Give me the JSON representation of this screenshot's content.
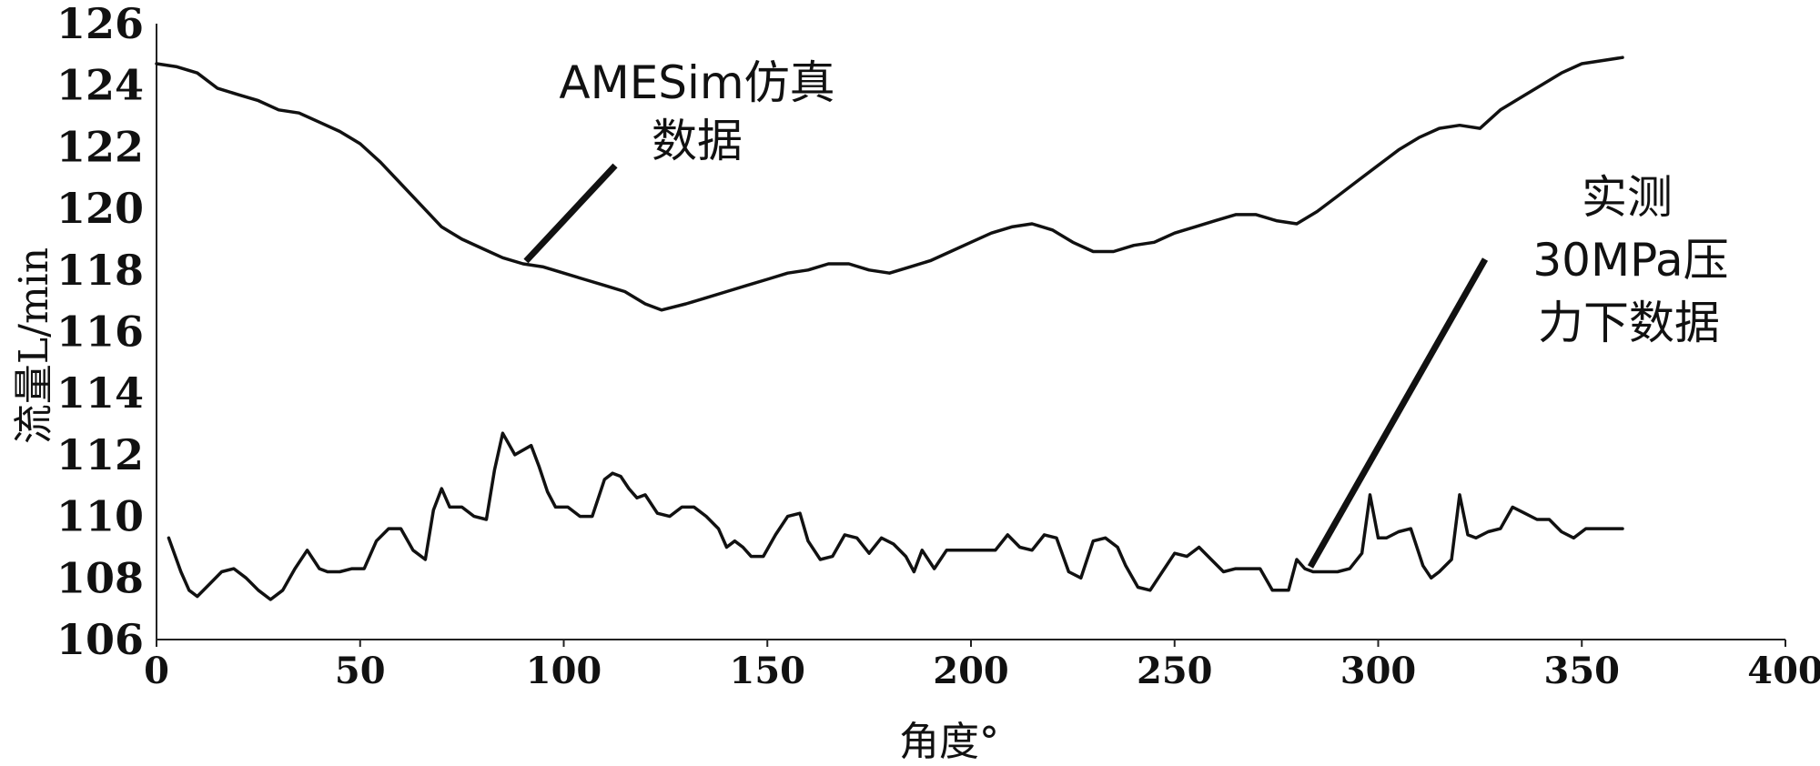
{
  "chart_data": {
    "type": "line",
    "xlabel": "角度°",
    "ylabel": "流量L/min",
    "xlim": [
      0,
      400
    ],
    "ylim": [
      106,
      126
    ],
    "x_ticks": [
      "0",
      "50",
      "100",
      "150",
      "200",
      "250",
      "300",
      "350",
      "400"
    ],
    "y_ticks": [
      "106",
      "108",
      "110",
      "112",
      "114",
      "116",
      "118",
      "120",
      "122",
      "124",
      "126"
    ],
    "grid": false,
    "legend": "none",
    "annotations": [
      {
        "lines": [
          "AMESim仿真",
          "数据"
        ],
        "target_series": 0
      },
      {
        "lines": [
          "实测",
          "30MPa压",
          "力下数据"
        ],
        "target_series": 1
      }
    ],
    "series": [
      {
        "x": [
          0,
          5,
          10,
          15,
          20,
          25,
          30,
          35,
          40,
          45,
          50,
          55,
          60,
          65,
          70,
          75,
          80,
          85,
          90,
          95,
          100,
          105,
          110,
          115,
          120,
          124,
          130,
          135,
          140,
          145,
          150,
          155,
          160,
          165,
          170,
          175,
          180,
          185,
          190,
          195,
          200,
          205,
          210,
          215,
          220,
          225,
          230,
          235,
          240,
          245,
          250,
          255,
          260,
          265,
          270,
          275,
          280,
          285,
          290,
          295,
          300,
          305,
          310,
          315,
          320,
          325,
          330,
          335,
          340,
          345,
          350,
          355,
          360
        ],
        "y": [
          124.7,
          124.6,
          124.4,
          123.9,
          123.7,
          123.5,
          123.2,
          123.1,
          122.8,
          122.5,
          122.1,
          121.5,
          120.8,
          120.1,
          119.4,
          119.0,
          118.7,
          118.4,
          118.2,
          118.1,
          117.9,
          117.7,
          117.5,
          117.3,
          116.9,
          116.7,
          116.9,
          117.1,
          117.3,
          117.5,
          117.7,
          117.9,
          118.0,
          118.2,
          118.2,
          118.0,
          117.9,
          118.1,
          118.3,
          118.6,
          118.9,
          119.2,
          119.4,
          119.5,
          119.3,
          118.9,
          118.6,
          118.6,
          118.8,
          118.9,
          119.2,
          119.4,
          119.6,
          119.8,
          119.8,
          119.6,
          119.5,
          119.9,
          120.4,
          120.9,
          121.4,
          121.9,
          122.3,
          122.6,
          122.7,
          122.6,
          123.2,
          123.6,
          124.0,
          124.4,
          124.7,
          124.8,
          124.9
        ]
      },
      {
        "x": [
          3,
          6,
          8,
          10,
          13,
          16,
          19,
          22,
          25,
          28,
          31,
          34,
          37,
          40,
          42,
          45,
          48,
          51,
          54,
          57,
          60,
          63,
          66,
          68,
          70,
          72,
          75,
          78,
          81,
          83,
          85,
          88,
          92,
          94,
          96,
          98,
          101,
          104,
          107,
          110,
          112,
          114,
          116,
          118,
          120,
          123,
          126,
          129,
          132,
          135,
          138,
          140,
          142,
          144,
          146,
          149,
          152,
          155,
          158,
          160,
          163,
          166,
          169,
          172,
          175,
          178,
          181,
          184,
          186,
          188,
          191,
          194,
          197,
          200,
          203,
          206,
          209,
          212,
          215,
          218,
          221,
          224,
          227,
          230,
          233,
          236,
          238,
          241,
          244,
          247,
          250,
          253,
          256,
          259,
          262,
          265,
          268,
          271,
          274,
          276,
          278,
          280,
          282,
          284,
          287,
          290,
          293,
          296,
          298,
          300,
          302,
          305,
          308,
          311,
          313,
          315,
          318,
          320,
          322,
          324,
          327,
          330,
          333,
          336,
          339,
          342,
          345,
          348,
          351,
          355,
          360
        ],
        "y": [
          109.3,
          108.2,
          107.6,
          107.4,
          107.8,
          108.2,
          108.3,
          108.0,
          107.6,
          107.3,
          107.6,
          108.3,
          108.9,
          108.3,
          108.2,
          108.2,
          108.3,
          108.3,
          109.2,
          109.6,
          109.6,
          108.9,
          108.6,
          110.2,
          110.9,
          110.3,
          110.3,
          110.0,
          109.9,
          111.5,
          112.7,
          112.0,
          112.3,
          111.6,
          110.8,
          110.3,
          110.3,
          110.0,
          110.0,
          111.2,
          111.4,
          111.3,
          110.9,
          110.6,
          110.7,
          110.1,
          110.0,
          110.3,
          110.3,
          110.0,
          109.6,
          109.0,
          109.2,
          109.0,
          108.7,
          108.7,
          109.4,
          110.0,
          110.1,
          109.2,
          108.6,
          108.7,
          109.4,
          109.3,
          108.8,
          109.3,
          109.1,
          108.7,
          108.2,
          108.9,
          108.3,
          108.9,
          108.9,
          108.9,
          108.9,
          108.9,
          109.4,
          109.0,
          108.9,
          109.4,
          109.3,
          108.2,
          108.0,
          109.2,
          109.3,
          109.0,
          108.4,
          107.7,
          107.6,
          108.2,
          108.8,
          108.7,
          109.0,
          108.6,
          108.2,
          108.3,
          108.3,
          108.3,
          107.6,
          107.6,
          107.6,
          108.6,
          108.3,
          108.2,
          108.2,
          108.2,
          108.3,
          108.8,
          110.7,
          109.3,
          109.3,
          109.5,
          109.6,
          108.4,
          108.0,
          108.2,
          108.6,
          110.7,
          109.4,
          109.3,
          109.5,
          109.6,
          110.3,
          110.1,
          109.9,
          109.9,
          109.5,
          109.3,
          109.6,
          109.6,
          109.6
        ]
      }
    ]
  }
}
